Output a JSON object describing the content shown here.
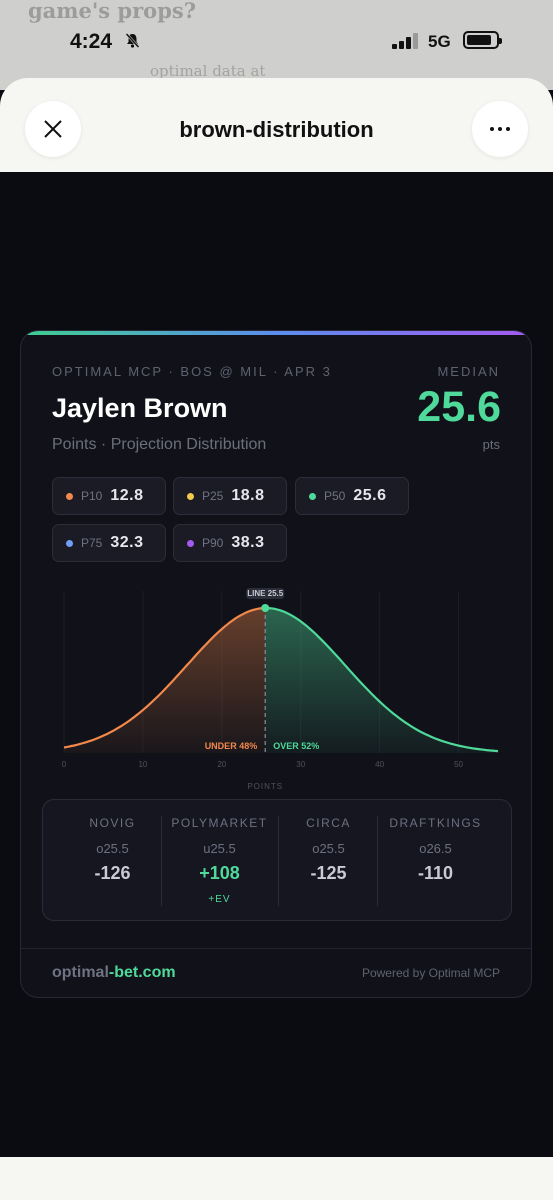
{
  "background": {
    "line1": "game's props?",
    "line2": "optimal data at"
  },
  "status_bar": {
    "time": "4:24",
    "network": "5G"
  },
  "sheet": {
    "title": "brown-distribution"
  },
  "card": {
    "meta": "OPTIMAL MCP · BOS @ MIL · APR 3",
    "median_label": "MEDIAN",
    "player": "Jaylen Brown",
    "median_value": "25.6",
    "unit": "pts",
    "subtitle": "Points · Projection Distribution",
    "percentiles": [
      {
        "label": "P10",
        "value": "12.8",
        "color": "#f2884b"
      },
      {
        "label": "P25",
        "value": "18.8",
        "color": "#f2c94c"
      },
      {
        "label": "P50",
        "value": "25.6",
        "color": "#4fd99a"
      },
      {
        "label": "P75",
        "value": "32.3",
        "color": "#6fa0f5"
      },
      {
        "label": "P90",
        "value": "38.3",
        "color": "#a45bf0"
      }
    ],
    "books": [
      {
        "name": "NOVIG",
        "line": "o25.5",
        "odds": "-126",
        "tag": ""
      },
      {
        "name": "POLYMARKET",
        "line": "u25.5",
        "odds": "+108",
        "tag": "+EV"
      },
      {
        "name": "CIRCA",
        "line": "o25.5",
        "odds": "-125",
        "tag": ""
      },
      {
        "name": "DRAFTKINGS",
        "line": "o26.5",
        "odds": "-110",
        "tag": ""
      }
    ],
    "footer_brand_a": "optimal",
    "footer_brand_b": "-bet.com",
    "footer_right": "Powered by Optimal MCP"
  },
  "chart_data": {
    "type": "area",
    "xlabel": "POINTS",
    "xlim": [
      0,
      55
    ],
    "xticks": [
      0,
      10,
      20,
      30,
      40,
      50
    ],
    "mean": 25.6,
    "sd": 10,
    "line": 25.5,
    "line_label": "LINE 25.5",
    "under_label": "UNDER 48%",
    "over_label": "OVER 52%",
    "under_color": "#f2884b",
    "over_color": "#4fd99a"
  }
}
